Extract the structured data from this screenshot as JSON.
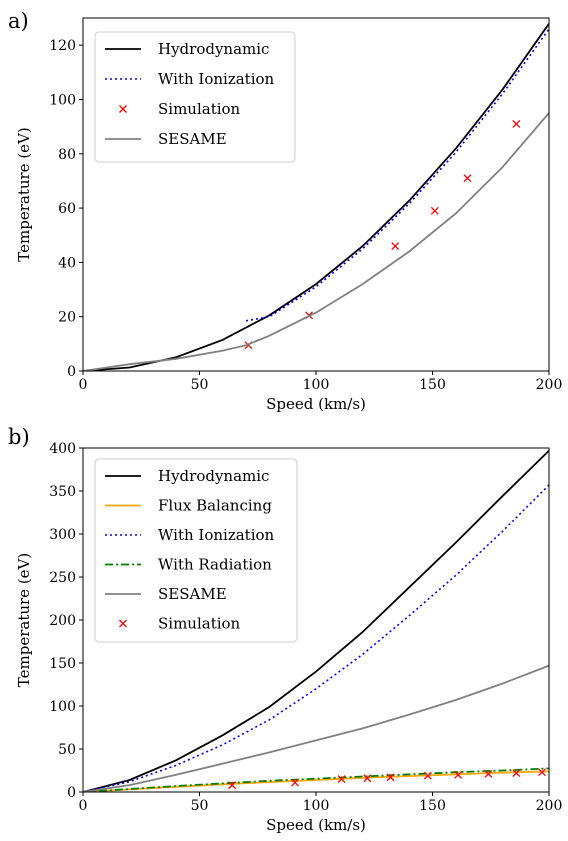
{
  "chart_data": [
    {
      "panel_label": "a)",
      "type": "line",
      "xlabel": "Speed (km/s)",
      "ylabel": "Temperature (eV)",
      "xlim": [
        0,
        200
      ],
      "ylim": [
        0,
        130
      ],
      "xticks": [
        "0",
        "50",
        "100",
        "150",
        "200"
      ],
      "yticks": [
        "0",
        "20",
        "40",
        "60",
        "80",
        "100",
        "120"
      ],
      "legend_position": "upper-left",
      "series": [
        {
          "name": "Hydrodynamic",
          "kind": "line",
          "style": "solid",
          "color": "#000000",
          "x": [
            0,
            20,
            40,
            60,
            80,
            100,
            120,
            140,
            160,
            180,
            200
          ],
          "y": [
            0,
            1.3,
            5.1,
            11.5,
            20.5,
            32,
            46,
            62.7,
            81.9,
            103.6,
            127.9
          ]
        },
        {
          "name": "With Ionization",
          "kind": "line",
          "style": "dotted",
          "color": "#0000ff",
          "x": [
            70,
            80,
            100,
            120,
            140,
            160,
            180,
            200
          ],
          "y": [
            18.5,
            20,
            31,
            45,
            61.6,
            80.5,
            102,
            126
          ]
        },
        {
          "name": "Simulation",
          "kind": "marker",
          "style": "x",
          "color": "#ff0000",
          "x": [
            71,
            97,
            134,
            151,
            165,
            186
          ],
          "y": [
            9.5,
            20.5,
            46,
            59,
            71,
            91
          ]
        },
        {
          "name": "SESAME",
          "kind": "line",
          "style": "solid",
          "color": "#808080",
          "x": [
            0,
            20,
            40,
            60,
            70,
            80,
            100,
            120,
            140,
            160,
            180,
            200
          ],
          "y": [
            0,
            2.5,
            4.5,
            7.5,
            9.5,
            13,
            21.5,
            32,
            44,
            58,
            75,
            95
          ]
        }
      ]
    },
    {
      "panel_label": "b)",
      "type": "line",
      "xlabel": "Speed (km/s)",
      "ylabel": "Temperature (eV)",
      "xlim": [
        0,
        200
      ],
      "ylim": [
        0,
        400
      ],
      "xticks": [
        "0",
        "50",
        "100",
        "150",
        "200"
      ],
      "yticks": [
        "0",
        "50",
        "100",
        "150",
        "200",
        "250",
        "300",
        "350",
        "400"
      ],
      "legend_position": "upper-left",
      "series": [
        {
          "name": "Hydrodynamic",
          "kind": "line",
          "style": "solid",
          "color": "#000000",
          "x": [
            0,
            20,
            40,
            60,
            80,
            100,
            120,
            140,
            160,
            180,
            200
          ],
          "y": [
            0,
            14,
            37,
            66,
            99,
            140,
            186,
            238,
            290,
            344,
            397
          ]
        },
        {
          "name": "Flux Balancing",
          "kind": "line",
          "style": "solid",
          "color": "#ffa500",
          "x": [
            0,
            20,
            40,
            60,
            80,
            100,
            120,
            140,
            160,
            180,
            200
          ],
          "y": [
            0,
            3,
            6,
            9,
            11.5,
            14,
            16.5,
            18.5,
            20.5,
            22.5,
            24
          ]
        },
        {
          "name": "With Ionization",
          "kind": "line",
          "style": "dotted",
          "color": "#0000ff",
          "x": [
            0,
            20,
            40,
            60,
            80,
            100,
            120,
            140,
            160,
            180,
            200
          ],
          "y": [
            0,
            12,
            31,
            55,
            84,
            120,
            160,
            205,
            252,
            303,
            357
          ]
        },
        {
          "name": "With Radiation",
          "kind": "line",
          "style": "dashdot",
          "color": "#008000",
          "x": [
            0,
            20,
            40,
            60,
            80,
            100,
            120,
            140,
            160,
            180,
            200
          ],
          "y": [
            0,
            3.5,
            7,
            10,
            13,
            15.5,
            18,
            20.5,
            23,
            25,
            27.5
          ]
        },
        {
          "name": "SESAME",
          "kind": "line",
          "style": "solid",
          "color": "#808080",
          "x": [
            0,
            20,
            40,
            60,
            80,
            100,
            120,
            140,
            160,
            180,
            200
          ],
          "y": [
            0,
            8,
            20,
            33,
            46,
            60,
            74,
            90,
            107,
            126,
            147
          ]
        },
        {
          "name": "Simulation",
          "kind": "marker",
          "style": "x",
          "color": "#ff0000",
          "x": [
            64,
            91,
            111,
            122,
            132,
            148,
            161,
            174,
            186,
            197
          ],
          "y": [
            8,
            11,
            15,
            16,
            17,
            19,
            20,
            21,
            22,
            23
          ]
        }
      ]
    }
  ]
}
